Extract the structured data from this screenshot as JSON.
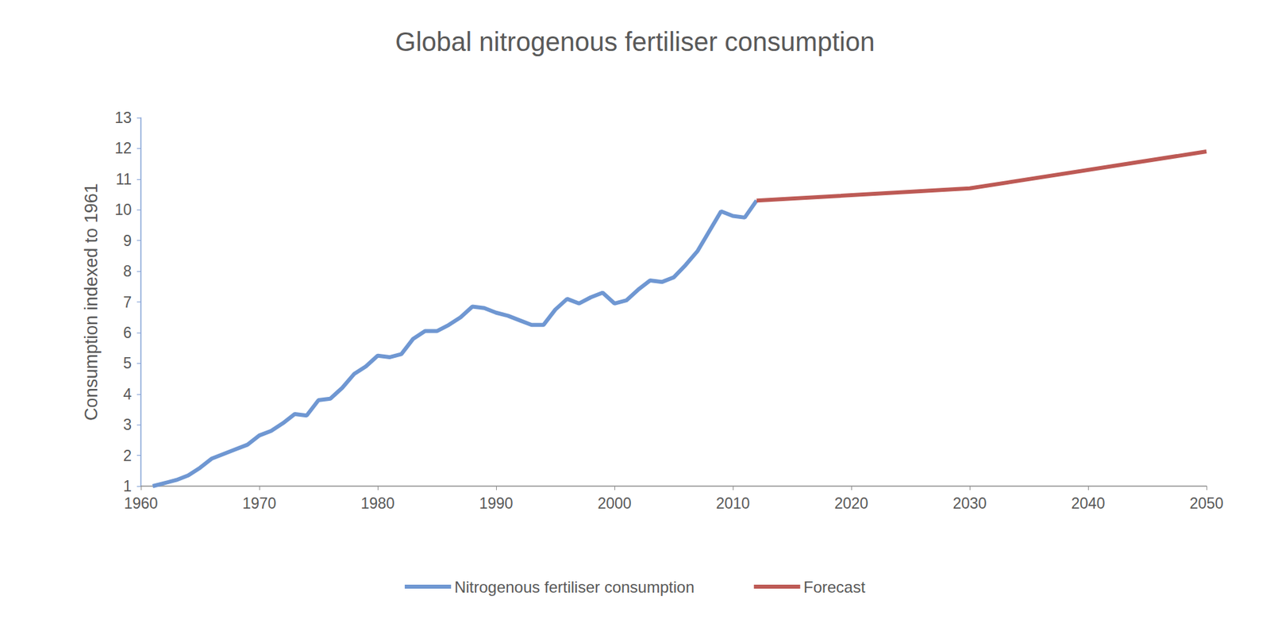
{
  "chart_data": {
    "type": "line",
    "title": "Global nitrogenous fertiliser consumption",
    "y_label": "Consumption indexed to 1961",
    "x": [
      1961,
      1962,
      1963,
      1964,
      1965,
      1966,
      1967,
      1968,
      1969,
      1970,
      1971,
      1972,
      1973,
      1974,
      1975,
      1976,
      1977,
      1978,
      1979,
      1980,
      1981,
      1982,
      1983,
      1984,
      1985,
      1986,
      1987,
      1988,
      1989,
      1990,
      1991,
      1992,
      1993,
      1994,
      1995,
      1996,
      1997,
      1998,
      1999,
      2000,
      2001,
      2002,
      2003,
      2004,
      2005,
      2006,
      2007,
      2008,
      2009,
      2010,
      2011,
      2012,
      2030,
      2050
    ],
    "series": [
      {
        "name": "Nitrogenous fertiliser consumption",
        "color": "#6f97d2",
        "values": [
          1.0,
          1.1,
          1.2,
          1.35,
          1.6,
          1.9,
          2.05,
          2.2,
          2.35,
          2.65,
          2.8,
          3.05,
          3.35,
          3.3,
          3.8,
          3.85,
          4.2,
          4.65,
          4.9,
          5.25,
          5.2,
          5.3,
          5.8,
          6.05,
          6.05,
          6.25,
          6.5,
          6.85,
          6.8,
          6.65,
          6.55,
          6.4,
          6.25,
          6.25,
          6.75,
          7.1,
          6.95,
          7.15,
          7.3,
          6.95,
          7.05,
          7.4,
          7.7,
          7.65,
          7.8,
          8.2,
          8.65,
          9.3,
          9.95,
          9.8,
          9.75,
          10.3,
          null,
          null
        ]
      },
      {
        "name": "Forecast",
        "color": "#bd5a55",
        "values": [
          null,
          null,
          null,
          null,
          null,
          null,
          null,
          null,
          null,
          null,
          null,
          null,
          null,
          null,
          null,
          null,
          null,
          null,
          null,
          null,
          null,
          null,
          null,
          null,
          null,
          null,
          null,
          null,
          null,
          null,
          null,
          null,
          null,
          null,
          null,
          null,
          null,
          null,
          null,
          null,
          null,
          null,
          null,
          null,
          null,
          null,
          null,
          null,
          null,
          null,
          null,
          10.3,
          10.7,
          11.9
        ]
      }
    ],
    "xlim": [
      1960,
      2050
    ],
    "xticks": [
      1960,
      1970,
      1980,
      1990,
      2000,
      2010,
      2020,
      2030,
      2040,
      2050
    ],
    "ylim": [
      1,
      13
    ],
    "yticks": [
      1,
      2,
      3,
      4,
      5,
      6,
      7,
      8,
      9,
      10,
      11,
      12,
      13
    ],
    "grid": false,
    "legend": "bottom"
  }
}
